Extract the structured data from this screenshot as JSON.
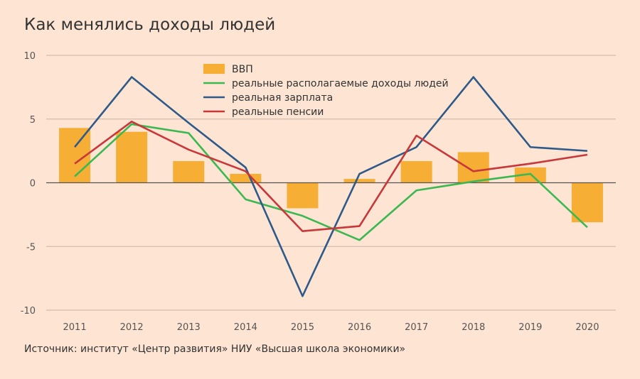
{
  "title": "Как менялись доходы людей",
  "source": "Источник: институт «Центр развития» НИУ «Высшая школа экономики»",
  "colors": {
    "gdp": "#f7ae34",
    "income": "#3cb852",
    "wage": "#2e5a8a",
    "pension": "#c8383a",
    "grid": "#c9b2a4",
    "zero": "#555555"
  },
  "chart_data": {
    "type": "bar",
    "categories": [
      "2011",
      "2012",
      "2013",
      "2014",
      "2015",
      "2016",
      "2017",
      "2018",
      "2019",
      "2020"
    ],
    "ylim": [
      -10,
      10
    ],
    "yticks": [
      "10",
      "5",
      "0",
      "-5",
      "-10"
    ],
    "ytick_values": [
      10,
      5,
      0,
      -5,
      -10
    ],
    "series": [
      {
        "name": "ВВП",
        "kind": "bar",
        "color_key": "gdp",
        "values": [
          4.3,
          4.0,
          1.7,
          0.7,
          -2.0,
          0.3,
          1.7,
          2.4,
          1.2,
          -3.1
        ]
      },
      {
        "name": "реальные располагаемые доходы людей",
        "kind": "line",
        "color_key": "income",
        "values": [
          0.5,
          4.6,
          3.9,
          -1.3,
          -2.6,
          -4.5,
          -0.6,
          0.1,
          0.7,
          -3.5
        ]
      },
      {
        "name": "реальная зарплата",
        "kind": "line",
        "color_key": "wage",
        "values": [
          2.8,
          8.3,
          4.7,
          1.2,
          -8.9,
          0.7,
          2.8,
          8.3,
          2.8,
          2.5
        ]
      },
      {
        "name": "реальные пенсии",
        "kind": "line",
        "color_key": "pension",
        "values": [
          1.5,
          4.8,
          2.6,
          0.9,
          -3.8,
          -3.4,
          3.7,
          0.9,
          1.5,
          2.2
        ]
      }
    ],
    "legend_position": "top-center"
  }
}
